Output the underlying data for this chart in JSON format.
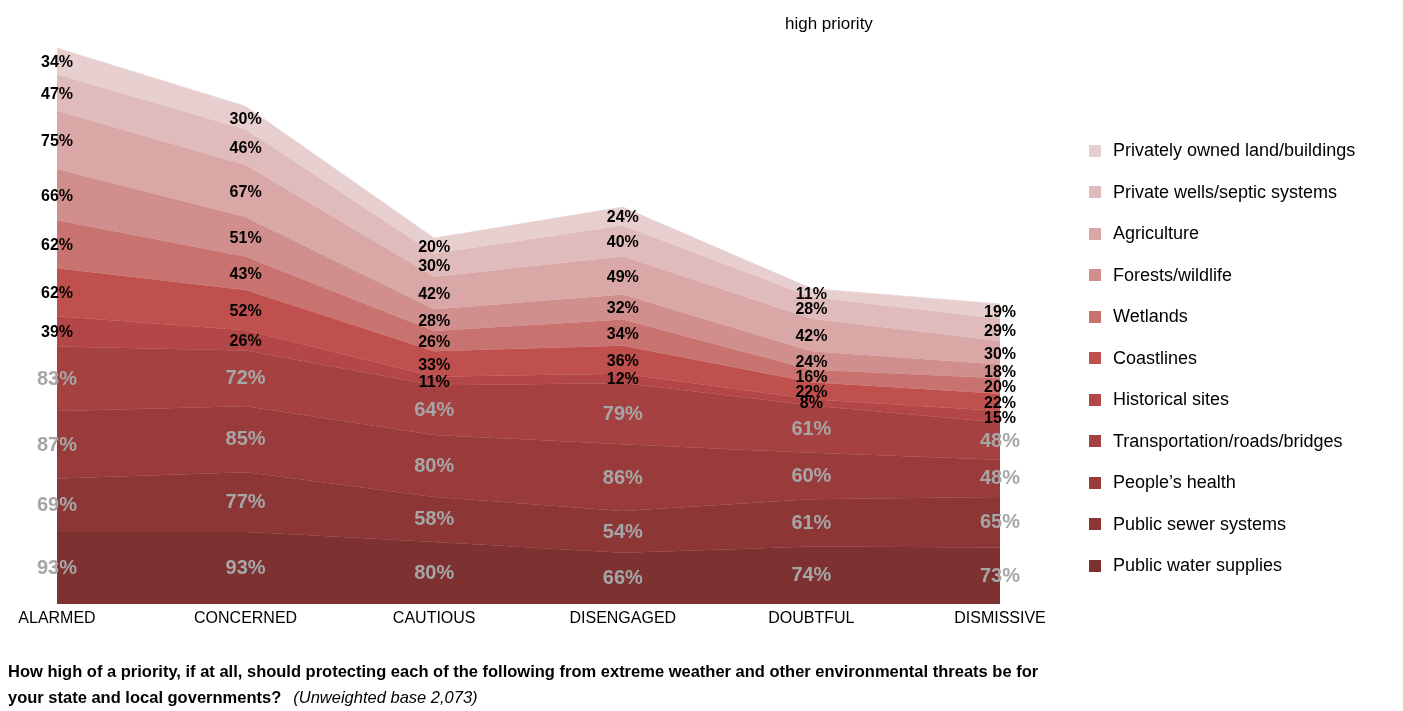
{
  "chart_data": {
    "type": "area",
    "stacked": true,
    "title": "high priority",
    "categories": [
      "ALARMED",
      "CONCERNED",
      "CAUTIOUS",
      "DISENGAGED",
      "DOUBTFUL",
      "DISMISSIVE"
    ],
    "series": [
      {
        "name": "Public water supplies",
        "color": "#7d3131",
        "values": [
          93,
          93,
          80,
          66,
          74,
          73
        ],
        "value_labels": [
          "93%",
          "93%",
          "80%",
          "66%",
          "74%",
          "73%"
        ]
      },
      {
        "name": "Public sewer systems",
        "color": "#8c3636",
        "values": [
          69,
          77,
          58,
          54,
          61,
          65
        ],
        "value_labels": [
          "69%",
          "77%",
          "58%",
          "54%",
          "61%",
          "65%"
        ]
      },
      {
        "name": "People’s health",
        "color": "#9a3b3b",
        "values": [
          87,
          85,
          80,
          86,
          60,
          48
        ],
        "value_labels": [
          "87%",
          "85%",
          "80%",
          "86%",
          "60%",
          "48%"
        ]
      },
      {
        "name": "Transportation/roads/bridges",
        "color": "#a64141",
        "values": [
          83,
          72,
          64,
          79,
          61,
          48
        ],
        "value_labels": [
          "83%",
          "72%",
          "64%",
          "79%",
          "61%",
          "48%"
        ]
      },
      {
        "name": "Historical sites",
        "color": "#b34646",
        "values": [
          39,
          26,
          11,
          12,
          8,
          15
        ],
        "value_labels": [
          "39%",
          "26%",
          "11%",
          "12%",
          "8%",
          "15%"
        ]
      },
      {
        "name": "Coastlines",
        "color": "#c0504d",
        "values": [
          62,
          52,
          33,
          36,
          22,
          22
        ],
        "value_labels": [
          "62%",
          "52%",
          "33%",
          "36%",
          "22%",
          "22%"
        ]
      },
      {
        "name": "Wetlands",
        "color": "#c8736f",
        "values": [
          62,
          43,
          26,
          34,
          16,
          20
        ],
        "value_labels": [
          "62%",
          "43%",
          "26%",
          "34%",
          "16%",
          "20%"
        ]
      },
      {
        "name": "Forests/wildlife",
        "color": "#d08e8c",
        "values": [
          66,
          51,
          28,
          32,
          24,
          18
        ],
        "value_labels": [
          "66%",
          "51%",
          "28%",
          "32%",
          "24%",
          "18%"
        ]
      },
      {
        "name": "Agriculture",
        "color": "#d9a7a6",
        "values": [
          75,
          67,
          42,
          49,
          42,
          30
        ],
        "value_labels": [
          "75%",
          "67%",
          "42%",
          "49%",
          "42%",
          "30%"
        ]
      },
      {
        "name": "Private wells/septic systems",
        "color": "#e0bbbb",
        "values": [
          47,
          46,
          30,
          40,
          28,
          29
        ],
        "value_labels": [
          "47%",
          "46%",
          "30%",
          "40%",
          "28%",
          "29%"
        ]
      },
      {
        "name": "Privately owned land/buildings",
        "color": "#e8cfcf",
        "values": [
          34,
          30,
          20,
          24,
          11,
          19
        ],
        "value_labels": [
          "34%",
          "30%",
          "20%",
          "24%",
          "11%",
          "19%"
        ]
      }
    ],
    "tick_labels": "x",
    "legend": "right",
    "annotations": [
      "How high of a priority, if at all, should protecting each of the following from extreme weather and other environmental threats be for your state and local governments?",
      "(Unweighted base 2,073)"
    ]
  }
}
